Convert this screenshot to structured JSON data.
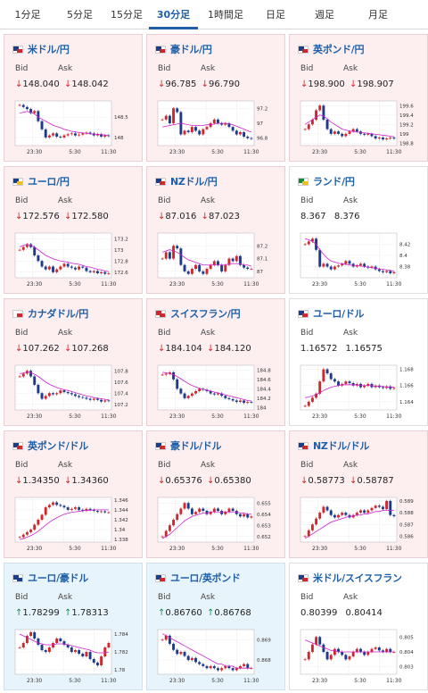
{
  "tabs": [
    "1分足",
    "5分足",
    "15分足",
    "30分足",
    "1時間足",
    "日足",
    "週足",
    "月足"
  ],
  "active_tab": "30分足",
  "labels": {
    "bid": "Bid",
    "ask": "Ask"
  },
  "colors": {
    "up_candle": "#d0272c",
    "down_candle": "#1e3a8a",
    "ma_line": "#d020d0",
    "ma_line2": "#3aa0e0"
  },
  "pairs": [
    {
      "name": "米ドル/円",
      "bid": "148.040",
      "ask": "148.042",
      "trend": "down",
      "flag": [
        "#1a3e8a",
        "#d0272c"
      ],
      "x_ticks": [
        "23:30",
        "5:30",
        "11:30"
      ],
      "y_ticks": [
        "148.5",
        "148"
      ],
      "y_range": [
        147.8,
        148.9
      ],
      "series": [
        148.8,
        148.75,
        148.7,
        148.6,
        148.65,
        148.4,
        148.2,
        148.0,
        148.05,
        148.1,
        148.02,
        148.0,
        148.05,
        148.08,
        148.1,
        148.05,
        148.07,
        148.1,
        148.12,
        148.1,
        148.05,
        148.08,
        148.02,
        148.05,
        148.04
      ],
      "ma": [
        148.6,
        148.62,
        148.64,
        148.62,
        148.58,
        148.5,
        148.45,
        148.4,
        148.35,
        148.3,
        148.27,
        148.24,
        148.2,
        148.18,
        148.15,
        148.14,
        148.12,
        148.11,
        148.1,
        148.09,
        148.08,
        148.08,
        148.07,
        148.06,
        148.05
      ]
    },
    {
      "name": "豪ドル/円",
      "bid": "96.785",
      "ask": "96.790",
      "trend": "down",
      "flag": [
        "#1a3e8a",
        "#d0272c"
      ],
      "x_ticks": [
        "23:30",
        "5:30",
        "11:30"
      ],
      "y_ticks": [
        "97.2",
        "97",
        "96.8"
      ],
      "y_range": [
        96.7,
        97.3
      ],
      "series": [
        97.05,
        97.1,
        97.0,
        97.2,
        97.15,
        96.85,
        96.9,
        96.88,
        96.95,
        96.9,
        96.85,
        96.92,
        96.95,
        97.0,
        97.05,
        97.0,
        96.98,
        97.0,
        96.95,
        96.9,
        96.85,
        96.88,
        96.82,
        96.8,
        96.79
      ],
      "ma": [
        96.95,
        96.96,
        96.97,
        96.98,
        96.99,
        97.0,
        96.99,
        96.98,
        96.97,
        96.97,
        96.97,
        96.97,
        96.98,
        96.98,
        96.99,
        97.0,
        97.0,
        97.0,
        96.99,
        96.98,
        96.96,
        96.94,
        96.92,
        96.9,
        96.88
      ]
    },
    {
      "name": "英ポンド/円",
      "bid": "198.900",
      "ask": "198.907",
      "trend": "down",
      "flag": [
        "#1a3e8a",
        "#d0272c"
      ],
      "x_ticks": [
        "23:30",
        "5:30",
        "11:30"
      ],
      "y_ticks": [
        "199.6",
        "199.4",
        "199.2",
        "199",
        "198.8"
      ],
      "y_range": [
        198.75,
        199.7
      ],
      "series": [
        199.1,
        199.2,
        199.3,
        199.5,
        199.6,
        199.3,
        199.1,
        199.0,
        199.05,
        199.0,
        198.95,
        199.0,
        199.05,
        199.1,
        199.05,
        199.0,
        198.98,
        199.0,
        198.95,
        198.9,
        198.92,
        198.88,
        198.9,
        198.92,
        198.9
      ],
      "ma": [
        199.2,
        199.25,
        199.3,
        199.35,
        199.4,
        199.38,
        199.32,
        199.25,
        199.2,
        199.15,
        199.1,
        199.08,
        199.06,
        199.05,
        199.04,
        199.03,
        199.02,
        199.01,
        199.0,
        198.99,
        198.98,
        198.97,
        198.96,
        198.95,
        198.94
      ]
    },
    {
      "name": "ユーロ/円",
      "bid": "172.576",
      "ask": "172.580",
      "trend": "down",
      "flag": [
        "#1a3e8a",
        "#f0c020"
      ],
      "x_ticks": [
        "23:30",
        "5:30",
        "11:30"
      ],
      "y_ticks": [
        "173.2",
        "173",
        "172.8",
        "172.6"
      ],
      "y_range": [
        172.5,
        173.3
      ],
      "series": [
        173.0,
        173.05,
        173.1,
        173.05,
        172.9,
        172.8,
        172.7,
        172.65,
        172.7,
        172.6,
        172.65,
        172.7,
        172.75,
        172.7,
        172.68,
        172.65,
        172.7,
        172.68,
        172.62,
        172.6,
        172.62,
        172.58,
        172.6,
        172.57,
        172.58
      ],
      "ma": [
        173.05,
        173.08,
        173.1,
        173.08,
        173.05,
        173.0,
        172.95,
        172.9,
        172.87,
        172.84,
        172.82,
        172.8,
        172.79,
        172.78,
        172.76,
        172.75,
        172.74,
        172.72,
        172.7,
        172.69,
        172.67,
        172.65,
        172.64,
        172.62,
        172.61
      ]
    },
    {
      "name": "NZドル/円",
      "bid": "87.016",
      "ask": "87.023",
      "trend": "down",
      "flag": [
        "#1a3e8a",
        "#d0272c"
      ],
      "x_ticks": [
        "23:30",
        "5:30",
        "11:30"
      ],
      "y_ticks": [
        "87.2",
        "87.1",
        "87"
      ],
      "y_range": [
        86.95,
        87.3
      ],
      "series": [
        87.1,
        87.15,
        87.1,
        87.2,
        87.18,
        87.05,
        87.0,
        86.98,
        87.02,
        87.05,
        87.0,
        86.98,
        87.02,
        87.05,
        87.08,
        87.05,
        87.0,
        87.05,
        87.1,
        87.08,
        87.12,
        87.05,
        87.03,
        87.02,
        87.02
      ],
      "ma": [
        87.15,
        87.16,
        87.17,
        87.16,
        87.15,
        87.13,
        87.11,
        87.09,
        87.08,
        87.07,
        87.06,
        87.05,
        87.05,
        87.05,
        87.05,
        87.05,
        87.05,
        87.05,
        87.06,
        87.06,
        87.06,
        87.06,
        87.05,
        87.05,
        87.04
      ]
    },
    {
      "name": "ランド/円",
      "bid": "8.367",
      "ask": "8.376",
      "trend": "neutral",
      "flag": [
        "#1a8a3a",
        "#f0c020"
      ],
      "x_ticks": [
        "23:30",
        "5:30",
        "11:30"
      ],
      "y_ticks": [
        "8.42",
        "8.4",
        "8.38"
      ],
      "y_range": [
        8.36,
        8.44
      ],
      "series": [
        8.42,
        8.425,
        8.43,
        8.41,
        8.38,
        8.385,
        8.38,
        8.375,
        8.38,
        8.382,
        8.385,
        8.39,
        8.385,
        8.38,
        8.382,
        8.385,
        8.38,
        8.378,
        8.38,
        8.375,
        8.372,
        8.37,
        8.372,
        8.368,
        8.37
      ],
      "ma": [
        8.43,
        8.428,
        8.425,
        8.42,
        8.41,
        8.402,
        8.395,
        8.39,
        8.388,
        8.386,
        8.385,
        8.384,
        8.383,
        8.382,
        8.382,
        8.381,
        8.38,
        8.379,
        8.378,
        8.377,
        8.376,
        8.375,
        8.374,
        8.373,
        8.372
      ]
    },
    {
      "name": "カナダドル/円",
      "bid": "107.262",
      "ask": "107.268",
      "trend": "down",
      "flag": [
        "#ffffff",
        "#d0272c"
      ],
      "x_ticks": [
        "23:30",
        "5:30",
        "11:30"
      ],
      "y_ticks": [
        "107.8",
        "107.6",
        "107.4",
        "107.2"
      ],
      "y_range": [
        107.1,
        107.9
      ],
      "series": [
        107.7,
        107.75,
        107.8,
        107.7,
        107.55,
        107.4,
        107.3,
        107.35,
        107.4,
        107.38,
        107.4,
        107.45,
        107.42,
        107.4,
        107.38,
        107.35,
        107.33,
        107.32,
        107.3,
        107.28,
        107.3,
        107.28,
        107.25,
        107.27,
        107.26
      ],
      "ma": [
        107.75,
        107.76,
        107.78,
        107.77,
        107.74,
        107.7,
        107.65,
        107.6,
        107.56,
        107.53,
        107.5,
        107.48,
        107.46,
        107.45,
        107.43,
        107.41,
        107.39,
        107.37,
        107.35,
        107.34,
        107.32,
        107.31,
        107.3,
        107.29,
        107.28
      ]
    },
    {
      "name": "スイスフラン/円",
      "bid": "184.104",
      "ask": "184.120",
      "trend": "down",
      "flag": [
        "#d0272c",
        "#d0272c"
      ],
      "x_ticks": [
        "23:30",
        "5:30",
        "11:30"
      ],
      "y_ticks": [
        "184.8",
        "184.6",
        "184.4",
        "184.2",
        "184"
      ],
      "y_range": [
        183.95,
        184.9
      ],
      "series": [
        184.7,
        184.72,
        184.75,
        184.6,
        184.4,
        184.3,
        184.2,
        184.25,
        184.3,
        184.35,
        184.4,
        184.38,
        184.35,
        184.3,
        184.28,
        184.3,
        184.25,
        184.2,
        184.18,
        184.15,
        184.12,
        184.15,
        184.1,
        184.12,
        184.11
      ],
      "ma": [
        184.75,
        184.74,
        184.72,
        184.7,
        184.66,
        184.61,
        184.56,
        184.51,
        184.47,
        184.44,
        184.41,
        184.39,
        184.37,
        184.35,
        184.33,
        184.31,
        184.29,
        184.27,
        184.25,
        184.23,
        184.21,
        184.19,
        184.17,
        184.15,
        184.14
      ]
    },
    {
      "name": "ユーロ/ドル",
      "bid": "1.16572",
      "ask": "1.16575",
      "trend": "neutral",
      "flag": [
        "#1a3e8a",
        "#d0272c"
      ],
      "x_ticks": [
        "23:30",
        "5:30",
        "11:30"
      ],
      "y_ticks": [
        "1.168",
        "1.166",
        "1.164"
      ],
      "y_range": [
        1.163,
        1.1685
      ],
      "series": [
        1.1635,
        1.164,
        1.1645,
        1.165,
        1.1665,
        1.168,
        1.1675,
        1.1668,
        1.1665,
        1.166,
        1.1662,
        1.1665,
        1.1663,
        1.166,
        1.1662,
        1.1658,
        1.166,
        1.1662,
        1.1658,
        1.166,
        1.1658,
        1.1657,
        1.1659,
        1.1656,
        1.1657
      ],
      "ma": [
        1.1645,
        1.1646,
        1.1647,
        1.1649,
        1.1651,
        1.1654,
        1.1656,
        1.1658,
        1.1659,
        1.166,
        1.1661,
        1.1661,
        1.1661,
        1.1661,
        1.1661,
        1.166,
        1.166,
        1.166,
        1.166,
        1.1659,
        1.1659,
        1.1659,
        1.1658,
        1.1658,
        1.1658
      ]
    },
    {
      "name": "英ポンド/ドル",
      "bid": "1.34350",
      "ask": "1.34360",
      "trend": "down",
      "flag": [
        "#1a3e8a",
        "#d0272c"
      ],
      "x_ticks": [
        "23:30",
        "5:30",
        "11:30"
      ],
      "y_ticks": [
        "1.346",
        "1.344",
        "1.342",
        "1.34",
        "1.338"
      ],
      "y_range": [
        1.3375,
        1.3465
      ],
      "series": [
        1.3385,
        1.339,
        1.3395,
        1.34,
        1.341,
        1.342,
        1.343,
        1.3445,
        1.345,
        1.3455,
        1.345,
        1.3448,
        1.3445,
        1.344,
        1.3442,
        1.3445,
        1.344,
        1.3438,
        1.3442,
        1.344,
        1.3438,
        1.3436,
        1.3437,
        1.3435,
        1.3435
      ],
      "ma": [
        1.338,
        1.3382,
        1.3385,
        1.3388,
        1.3392,
        1.3397,
        1.3403,
        1.3409,
        1.3415,
        1.342,
        1.3424,
        1.3428,
        1.3431,
        1.3433,
        1.3435,
        1.3436,
        1.3437,
        1.3438,
        1.3439,
        1.3439,
        1.344,
        1.344,
        1.344,
        1.344,
        1.344
      ]
    },
    {
      "name": "豪ドル/ドル",
      "bid": "0.65376",
      "ask": "0.65380",
      "trend": "down",
      "flag": [
        "#1a3e8a",
        "#d0272c"
      ],
      "x_ticks": [
        "23:30",
        "5:30",
        "11:30"
      ],
      "y_ticks": [
        "0.655",
        "0.654",
        "0.653",
        "0.652"
      ],
      "y_range": [
        0.6515,
        0.6555
      ],
      "series": [
        0.652,
        0.6525,
        0.653,
        0.6535,
        0.654,
        0.6545,
        0.655,
        0.6545,
        0.654,
        0.6542,
        0.6545,
        0.6543,
        0.654,
        0.6542,
        0.6545,
        0.6543,
        0.654,
        0.6542,
        0.6545,
        0.6543,
        0.654,
        0.6538,
        0.654,
        0.6537,
        0.6538
      ],
      "ma": [
        0.6518,
        0.652,
        0.6522,
        0.6525,
        0.6528,
        0.6531,
        0.6534,
        0.6536,
        0.6538,
        0.6539,
        0.654,
        0.6541,
        0.6541,
        0.6542,
        0.6542,
        0.6542,
        0.6542,
        0.6542,
        0.6542,
        0.6542,
        0.6542,
        0.6541,
        0.6541,
        0.654,
        0.654
      ]
    },
    {
      "name": "NZドル/ドル",
      "bid": "0.58773",
      "ask": "0.58787",
      "trend": "down",
      "flag": [
        "#1a3e8a",
        "#d0272c"
      ],
      "x_ticks": [
        "23:30",
        "5:30",
        "11:30"
      ],
      "y_ticks": [
        "0.589",
        "0.588",
        "0.587",
        "0.586"
      ],
      "y_range": [
        0.5855,
        0.5893
      ],
      "series": [
        0.586,
        0.5865,
        0.587,
        0.5875,
        0.588,
        0.5885,
        0.5882,
        0.5878,
        0.5876,
        0.5878,
        0.588,
        0.5878,
        0.5876,
        0.5878,
        0.588,
        0.5882,
        0.588,
        0.5882,
        0.5884,
        0.5886,
        0.5885,
        0.5883,
        0.589,
        0.5878,
        0.5877
      ],
      "ma": [
        0.5858,
        0.586,
        0.5862,
        0.5864,
        0.5866,
        0.5868,
        0.587,
        0.5872,
        0.5873,
        0.5874,
        0.5875,
        0.5876,
        0.5877,
        0.5877,
        0.5878,
        0.5878,
        0.5879,
        0.5879,
        0.588,
        0.5881,
        0.5881,
        0.5882,
        0.5882,
        0.5882,
        0.5882
      ]
    },
    {
      "name": "ユーロ/豪ドル",
      "bid": "1.78299",
      "ask": "1.78313",
      "trend": "up",
      "flag": [
        "#1a3e8a",
        "#1a3e8a"
      ],
      "x_ticks": [
        "23:30",
        "5:30",
        "11:30"
      ],
      "y_ticks": [
        "1.784",
        "1.782",
        "1.78"
      ],
      "y_range": [
        1.7795,
        1.7845
      ],
      "series": [
        1.7825,
        1.783,
        1.7838,
        1.7842,
        1.7835,
        1.7828,
        1.7822,
        1.782,
        1.7825,
        1.783,
        1.7835,
        1.7832,
        1.7828,
        1.7825,
        1.782,
        1.7822,
        1.7818,
        1.7815,
        1.782,
        1.7812,
        1.7808,
        1.7805,
        1.7815,
        1.7825,
        1.783
      ],
      "ma": [
        1.784,
        1.7838,
        1.7836,
        1.7834,
        1.7832,
        1.783,
        1.7829,
        1.7828,
        1.7828,
        1.7828,
        1.7829,
        1.7829,
        1.7829,
        1.7828,
        1.7827,
        1.7826,
        1.7825,
        1.7824,
        1.7823,
        1.7822,
        1.782,
        1.7819,
        1.7819,
        1.7819,
        1.782
      ]
    },
    {
      "name": "ユーロ/英ポンド",
      "bid": "0.86760",
      "ask": "0.86768",
      "trend": "up",
      "flag": [
        "#1a3e8a",
        "#d0272c"
      ],
      "x_ticks": [
        "23:30",
        "5:30",
        "11:30"
      ],
      "y_ticks": [
        "0.869",
        "0.868"
      ],
      "y_range": [
        0.8673,
        0.8695
      ],
      "series": [
        0.869,
        0.8692,
        0.8688,
        0.8685,
        0.8683,
        0.8684,
        0.8682,
        0.868,
        0.8681,
        0.8679,
        0.8678,
        0.8677,
        0.8676,
        0.8677,
        0.8676,
        0.8675,
        0.8676,
        0.8677,
        0.8676,
        0.8675,
        0.8676,
        0.8677,
        0.8678,
        0.8676,
        0.8676
      ],
      "ma": [
        0.8693,
        0.8692,
        0.8691,
        0.869,
        0.8689,
        0.8688,
        0.8687,
        0.8686,
        0.8685,
        0.8684,
        0.8683,
        0.8682,
        0.8681,
        0.868,
        0.8679,
        0.8678,
        0.8678,
        0.8677,
        0.8677,
        0.8677,
        0.8676,
        0.8676,
        0.8676,
        0.8676,
        0.8676
      ]
    },
    {
      "name": "米ドル/スイスフラン",
      "bid": "0.80399",
      "ask": "0.80414",
      "trend": "neutral",
      "flag": [
        "#1a3e8a",
        "#d0272c"
      ],
      "x_ticks": [
        "23:30",
        "5:30",
        "11:30"
      ],
      "y_ticks": [
        "0.805",
        "0.804",
        "0.803"
      ],
      "y_range": [
        0.8025,
        0.8055
      ],
      "series": [
        0.8035,
        0.804,
        0.8045,
        0.805,
        0.8045,
        0.804,
        0.8035,
        0.8038,
        0.8042,
        0.804,
        0.8038,
        0.8035,
        0.8037,
        0.804,
        0.8042,
        0.804,
        0.8038,
        0.804,
        0.8042,
        0.8043,
        0.8041,
        0.804,
        0.8042,
        0.804,
        0.804
      ],
      "ma": [
        0.8048,
        0.8047,
        0.8046,
        0.8045,
        0.8044,
        0.8043,
        0.8042,
        0.8041,
        0.8041,
        0.804,
        0.804,
        0.804,
        0.804,
        0.804,
        0.804,
        0.804,
        0.804,
        0.804,
        0.804,
        0.804,
        0.804,
        0.804,
        0.804,
        0.804,
        0.804
      ]
    }
  ]
}
